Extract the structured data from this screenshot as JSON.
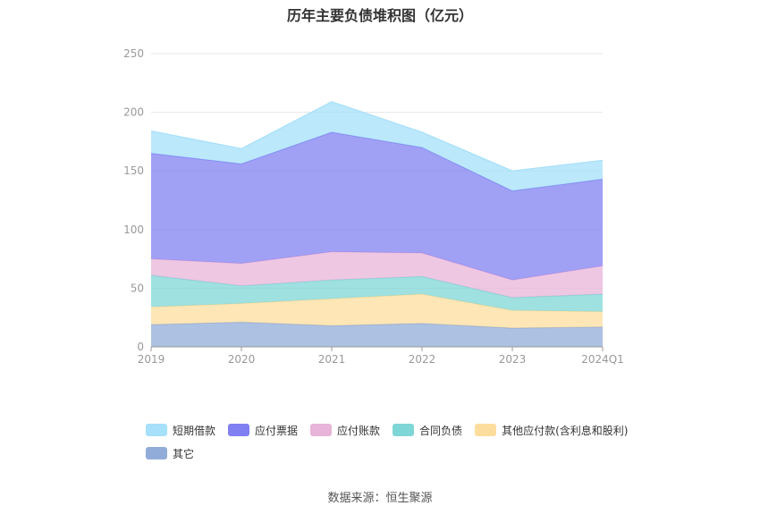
{
  "chart_data": {
    "type": "area",
    "stacked": true,
    "title": "历年主要负债堆积图（亿元）",
    "categories": [
      "2019",
      "2020",
      "2021",
      "2022",
      "2023",
      "2024Q1"
    ],
    "ylim": [
      0,
      250
    ],
    "yticks": [
      0,
      50,
      100,
      150,
      200,
      250
    ],
    "grid": true,
    "legend_position": "bottom",
    "series": [
      {
        "name": "其它",
        "color": "#91acd9",
        "values": [
          19,
          21,
          18,
          20,
          16,
          17
        ]
      },
      {
        "name": "其他应付款(含利息和股利)",
        "color": "#fddd9d",
        "values": [
          15,
          16,
          23,
          25,
          15,
          13
        ]
      },
      {
        "name": "合同负债",
        "color": "#7fd6d6",
        "values": [
          27,
          15,
          16,
          15,
          11,
          15
        ]
      },
      {
        "name": "应付账款",
        "color": "#e8b4d9",
        "values": [
          14,
          19,
          24,
          20,
          15,
          24
        ]
      },
      {
        "name": "应付票据",
        "color": "#8080f2",
        "values": [
          90,
          85,
          102,
          90,
          76,
          74
        ]
      },
      {
        "name": "短期借款",
        "color": "#a6e0fa",
        "values": [
          19,
          13,
          26,
          13,
          17,
          16
        ]
      }
    ],
    "legend_order": [
      "短期借款",
      "应付票据",
      "应付账款",
      "合同负债",
      "其他应付款(含利息和股利)",
      "其它"
    ]
  },
  "source": "数据来源：恒生聚源"
}
